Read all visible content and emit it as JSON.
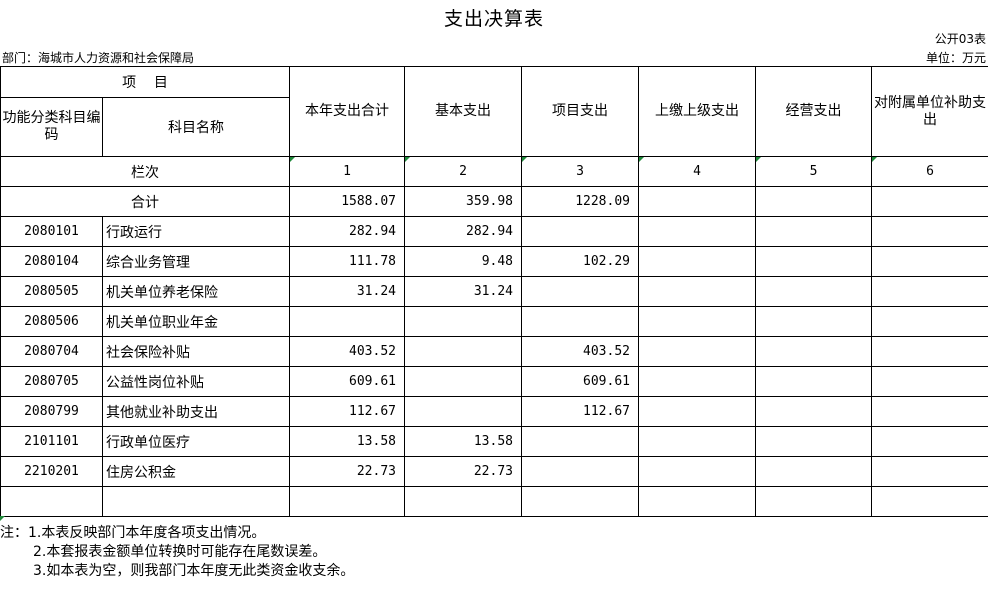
{
  "title": "支出决算表",
  "form_code": "公开03表",
  "department": "部门：海城市人力资源和社会保障局",
  "unit": "单位：万元",
  "header": {
    "project": "项    目",
    "code_col": "功能分类科目编码",
    "name_col": "科目名称",
    "columns": [
      "本年支出合计",
      "基本支出",
      "项目支出",
      "上缴上级支出",
      "经营支出",
      "对附属单位补助支出"
    ],
    "row_index_label": "栏次",
    "row_index_values": [
      "1",
      "2",
      "3",
      "4",
      "5",
      "6"
    ]
  },
  "total": {
    "label": "合计",
    "values": [
      "1588.07",
      "359.98",
      "1228.09",
      "",
      "",
      ""
    ]
  },
  "rows": [
    {
      "code": "2080101",
      "name": "行政运行",
      "values": [
        "282.94",
        "282.94",
        "",
        "",
        "",
        ""
      ]
    },
    {
      "code": "2080104",
      "name": "综合业务管理",
      "values": [
        "111.78",
        "9.48",
        "102.29",
        "",
        "",
        ""
      ]
    },
    {
      "code": "2080505",
      "name": "机关单位养老保险",
      "values": [
        "31.24",
        "31.24",
        "",
        "",
        "",
        ""
      ]
    },
    {
      "code": "2080506",
      "name": "机关单位职业年金",
      "values": [
        "",
        "",
        "",
        "",
        "",
        ""
      ]
    },
    {
      "code": "2080704",
      "name": "社会保险补贴",
      "values": [
        "403.52",
        "",
        "403.52",
        "",
        "",
        ""
      ]
    },
    {
      "code": "2080705",
      "name": "公益性岗位补贴",
      "values": [
        "609.61",
        "",
        "609.61",
        "",
        "",
        ""
      ]
    },
    {
      "code": "2080799",
      "name": "其他就业补助支出",
      "values": [
        "112.67",
        "",
        "112.67",
        "",
        "",
        ""
      ]
    },
    {
      "code": "2101101",
      "name": "行政单位医疗",
      "values": [
        "13.58",
        "13.58",
        "",
        "",
        "",
        ""
      ]
    },
    {
      "code": "2210201",
      "name": "住房公积金",
      "values": [
        "22.73",
        "22.73",
        "",
        "",
        "",
        ""
      ]
    },
    {
      "code": "",
      "name": "",
      "values": [
        "",
        "",
        "",
        "",
        "",
        ""
      ]
    }
  ],
  "notes": [
    "注：1.本表反映部门本年度各项支出情况。",
    "2.本套报表金额单位转换时可能存在尾数误差。",
    "3.如本表为空，则我部门本年度无此类资金收支余。"
  ]
}
